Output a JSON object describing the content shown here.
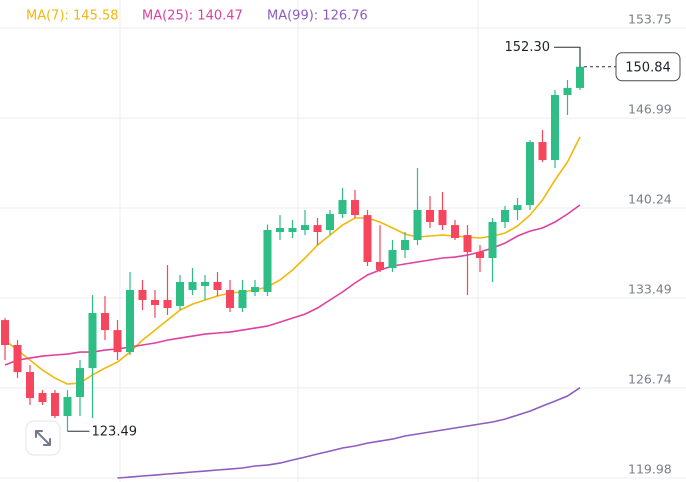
{
  "chart_data": {
    "type": "candlestick",
    "ylim": [
      119.68,
      155.85
    ],
    "yticks": [
      153.75,
      146.99,
      140.24,
      133.49,
      126.74,
      119.98
    ],
    "grid": true,
    "up_color": "#2ebd85",
    "down_color": "#f6465d",
    "candles": {
      "open": [
        131.83,
        129.96,
        127.93,
        126.36,
        126.36,
        124.63,
        126.06,
        128.23,
        132.36,
        131.08,
        129.43,
        134.09,
        133.34,
        133.34,
        132.89,
        134.09,
        134.39,
        134.69,
        134.09,
        132.74,
        133.94,
        133.94,
        138.44,
        138.44,
        138.59,
        138.96,
        138.59,
        139.79,
        140.84,
        139.71,
        136.19,
        135.74,
        137.09,
        137.84,
        140.09,
        140.09,
        138.96,
        138.21,
        136.94,
        136.49,
        139.19,
        140.09,
        140.46,
        145.19,
        143.84,
        148.72,
        149.25
      ],
      "high": [
        131.98,
        130.33,
        128.46,
        126.58,
        126.58,
        126.58,
        128.83,
        133.71,
        133.64,
        131.83,
        135.44,
        134.84,
        134.09,
        135.96,
        135.21,
        135.74,
        135.21,
        135.44,
        134.84,
        134.84,
        134.84,
        139.0,
        139.71,
        139.34,
        140.09,
        139.49,
        140.09,
        141.74,
        141.59,
        140.09,
        138.96,
        137.84,
        138.44,
        143.24,
        141.14,
        141.44,
        139.34,
        138.96,
        137.46,
        139.49,
        140.39,
        140.99,
        145.34,
        146.09,
        149.1,
        149.85,
        152.3
      ],
      "low": [
        128.83,
        127.48,
        125.46,
        125.46,
        124.48,
        123.49,
        124.63,
        124.48,
        130.33,
        128.83,
        129.21,
        132.58,
        132.0,
        132.21,
        132.58,
        133.71,
        133.34,
        133.64,
        132.43,
        132.43,
        133.64,
        133.64,
        137.84,
        137.99,
        138.21,
        137.46,
        138.21,
        139.49,
        139.49,
        135.89,
        135.44,
        135.44,
        136.49,
        137.46,
        138.74,
        138.59,
        137.84,
        133.71,
        135.44,
        134.69,
        138.74,
        139.34,
        140.09,
        143.69,
        143.24,
        147.22,
        149.1
      ],
      "close": [
        129.96,
        127.93,
        125.98,
        125.68,
        124.63,
        126.06,
        128.23,
        132.36,
        131.08,
        129.43,
        134.09,
        133.34,
        132.96,
        132.74,
        134.69,
        134.69,
        134.69,
        134.09,
        132.74,
        134.09,
        134.31,
        138.59,
        138.74,
        138.74,
        138.96,
        138.44,
        139.79,
        140.84,
        139.71,
        136.19,
        135.59,
        137.09,
        137.84,
        140.09,
        139.19,
        138.96,
        137.99,
        136.94,
        136.49,
        139.19,
        140.09,
        140.46,
        145.19,
        143.84,
        148.72,
        149.25,
        150.84
      ]
    },
    "series": [
      {
        "name": "MA(7): 145.58",
        "color": "#f0b90b",
        "values": [
          130.33,
          129.58,
          128.83,
          128.08,
          127.48,
          127.03,
          127.11,
          127.71,
          128.23,
          128.68,
          129.43,
          130.33,
          131.08,
          131.83,
          132.58,
          133.03,
          133.34,
          133.64,
          133.86,
          133.94,
          134.09,
          134.31,
          134.84,
          135.59,
          136.49,
          137.46,
          138.21,
          138.96,
          139.49,
          139.49,
          139.19,
          138.74,
          138.29,
          138.06,
          138.14,
          138.21,
          138.14,
          138.06,
          137.99,
          138.14,
          138.36,
          138.89,
          139.71,
          140.84,
          142.34,
          143.69,
          145.58
        ]
      },
      {
        "name": "MA(25): 140.47",
        "color": "#e040a0",
        "values": [
          128.46,
          128.83,
          128.98,
          129.13,
          129.21,
          129.28,
          129.43,
          129.43,
          129.58,
          129.66,
          129.81,
          129.96,
          130.11,
          130.33,
          130.48,
          130.63,
          130.78,
          130.86,
          130.93,
          131.08,
          131.23,
          131.38,
          131.68,
          131.98,
          132.28,
          132.74,
          133.34,
          133.94,
          134.61,
          135.21,
          135.59,
          135.89,
          136.04,
          136.19,
          136.34,
          136.49,
          136.56,
          136.71,
          136.94,
          137.24,
          137.61,
          138.14,
          138.51,
          138.74,
          139.19,
          139.79,
          140.47
        ]
      },
      {
        "name": "MA(99): 126.76",
        "color": "#8e5cc0",
        "values": [
          null,
          null,
          null,
          null,
          null,
          null,
          null,
          null,
          null,
          119.98,
          120.05,
          120.13,
          120.2,
          120.28,
          120.35,
          120.43,
          120.5,
          120.58,
          120.65,
          120.73,
          120.88,
          120.95,
          121.1,
          121.33,
          121.55,
          121.78,
          122.0,
          122.23,
          122.38,
          122.6,
          122.75,
          122.9,
          123.13,
          123.28,
          123.43,
          123.58,
          123.73,
          123.88,
          124.03,
          124.18,
          124.4,
          124.7,
          125.0,
          125.38,
          125.75,
          126.13,
          126.76
        ]
      }
    ],
    "max_label": {
      "value": 152.3,
      "label": "152.30"
    },
    "min_label": 123.49,
    "last_price": 150.84
  }
}
